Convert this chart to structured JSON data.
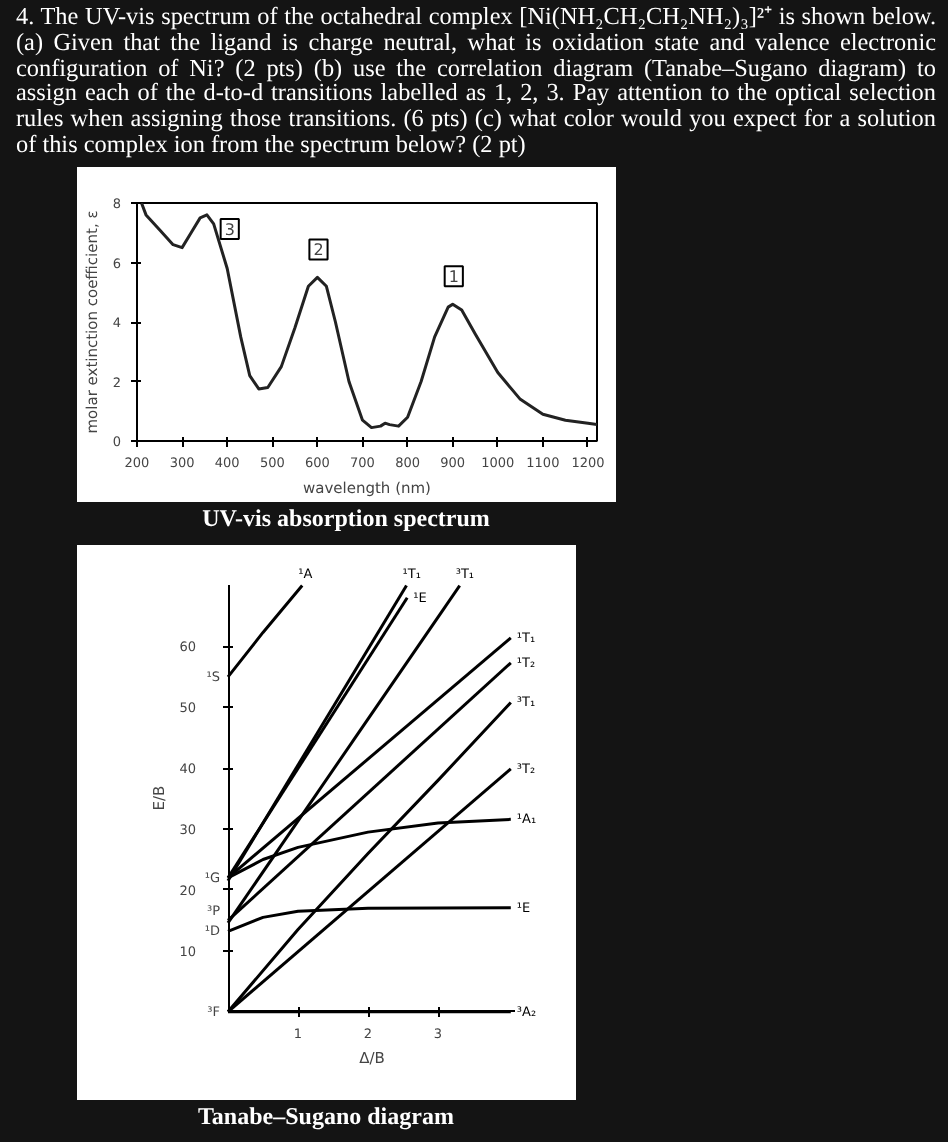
{
  "chart_data": [
    {
      "type": "line",
      "title": "UV-vis absorption spectrum",
      "xlabel": "wavelength (nm)",
      "ylabel": "molar extinction coefficient, ε",
      "annotations": [
        "4. The UV-vis spectrum of the octahedral complex [Ni(NH₂CH₂CH₂NH₂)₃]²⁺ is shown below. (a) Given that the ligand is charge neutral, what is oxidation state and valence electronic configuration of Ni? (2 pts) (b) use the correlation diagram (Tanabe–Sugano diagram) to assign each of the d-to-d transitions labelled as 1, 2, 3. Pay attention to the optical selection rules when assigning those transitions. (6 pts) (c) what color would you expect for a solution of this complex ion from the spectrum below? (2 pt)",
        {
          "text": "3",
          "x": 350,
          "y": 7.6
        },
        {
          "text": "2",
          "x": 600,
          "y": 5.5
        },
        {
          "text": "1",
          "x": 900,
          "y": 4.6
        }
      ],
      "x": [
        210,
        220,
        250,
        280,
        300,
        320,
        340,
        355,
        370,
        400,
        430,
        450,
        470,
        490,
        520,
        550,
        580,
        600,
        620,
        640,
        670,
        700,
        720,
        740,
        750,
        760,
        780,
        800,
        830,
        860,
        890,
        900,
        920,
        950,
        1000,
        1050,
        1100,
        1150,
        1200,
        1220
      ],
      "series": [
        {
          "color": "#222222",
          "values": [
            8,
            7.6,
            7.1,
            6.6,
            6.5,
            7,
            7.5,
            7.6,
            7.3,
            5.8,
            3.5,
            2.2,
            1.75,
            1.8,
            2.5,
            3.8,
            5.2,
            5.5,
            5.2,
            4,
            2,
            0.7,
            0.45,
            0.5,
            0.6,
            0.55,
            0.5,
            0.8,
            2,
            3.5,
            4.5,
            4.6,
            4.4,
            3.6,
            2.3,
            1.4,
            0.9,
            0.7,
            0.6,
            0.55
          ]
        }
      ],
      "xlim": [
        200,
        1220
      ],
      "ylim": [
        0,
        8
      ],
      "xticks": [
        200,
        300,
        400,
        500,
        600,
        700,
        800,
        900,
        1000,
        1100,
        1200
      ],
      "yticks": [
        0,
        2,
        4,
        6,
        8
      ],
      "grid": false,
      "legend": false
    },
    {
      "type": "line",
      "title": "Tanabe–Sugano diagram",
      "xlabel": "Δ/B",
      "ylabel": "E/B",
      "annotations": [
        {
          "text": "¹S",
          "x": 0,
          "y": 55
        },
        {
          "text": "¹G",
          "x": 0,
          "y": 22
        },
        {
          "text": "³P",
          "x": 0,
          "y": 16.5
        },
        {
          "text": "¹D",
          "x": 0,
          "y": 13.2
        },
        {
          "text": "³F",
          "x": 0,
          "y": 0
        }
      ],
      "series": [
        {
          "name": "¹A",
          "color": "#000000",
          "x": [
            0,
            0.5,
            1.06
          ],
          "values": [
            55,
            62.3,
            70
          ]
        },
        {
          "name": "¹T₁",
          "color": "#000000",
          "x": [
            0,
            2.55
          ],
          "values": [
            21.5,
            70
          ]
        },
        {
          "name": "¹E",
          "color": "#000000",
          "x": [
            0,
            2.56
          ],
          "values": [
            22,
            68
          ]
        },
        {
          "name": "³T₁",
          "color": "#000000",
          "x": [
            0,
            3.31
          ],
          "values": [
            14.6,
            70
          ]
        },
        {
          "name": "¹T₁",
          "color": "#000000",
          "x": [
            0,
            4.04
          ],
          "values": [
            22,
            61.4
          ]
        },
        {
          "name": "¹T₂",
          "color": "#000000",
          "x": [
            0,
            4.04
          ],
          "values": [
            15,
            57.3
          ]
        },
        {
          "name": "³T₁",
          "color": "#000000",
          "x": [
            0,
            1,
            2,
            3,
            4.04
          ],
          "values": [
            0,
            13.5,
            26,
            38,
            50.8
          ]
        },
        {
          "name": "³T₂",
          "color": "#000000",
          "x": [
            0,
            4.04
          ],
          "values": [
            0,
            39.9
          ]
        },
        {
          "name": "¹A₁",
          "color": "#000000",
          "x": [
            0,
            0.5,
            1,
            2,
            3,
            4.04
          ],
          "values": [
            22,
            25,
            27,
            29.5,
            31,
            31.6
          ]
        },
        {
          "name": "¹E",
          "color": "#000000",
          "x": [
            0,
            0.5,
            1,
            2,
            4.04
          ],
          "values": [
            13.2,
            15.5,
            16.5,
            17,
            17.1
          ]
        },
        {
          "name": "³A₂",
          "color": "#000000",
          "x": [
            0,
            4.04
          ],
          "values": [
            0,
            0
          ]
        }
      ],
      "xlim": [
        0,
        4.1
      ],
      "ylim": [
        0,
        70
      ],
      "xticks": [
        1,
        2,
        3
      ],
      "yticks": [
        10,
        20,
        30,
        40,
        50,
        60
      ],
      "grid": false,
      "legend": false
    }
  ]
}
